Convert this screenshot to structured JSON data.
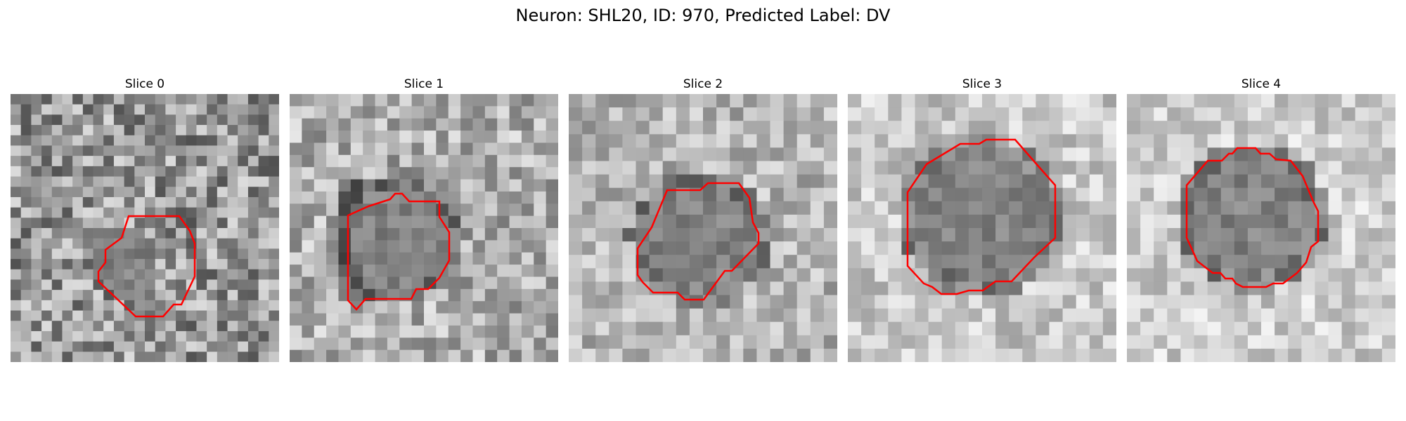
{
  "figure": {
    "title": "Neuron: SHL20, ID: 970, Predicted Label: DV",
    "contour_color": "#ff0000"
  },
  "panels": [
    {
      "title": "Slice 0"
    },
    {
      "title": "Slice 1"
    },
    {
      "title": "Slice 2"
    },
    {
      "title": "Slice 3"
    },
    {
      "title": "Slice 4"
    }
  ]
}
